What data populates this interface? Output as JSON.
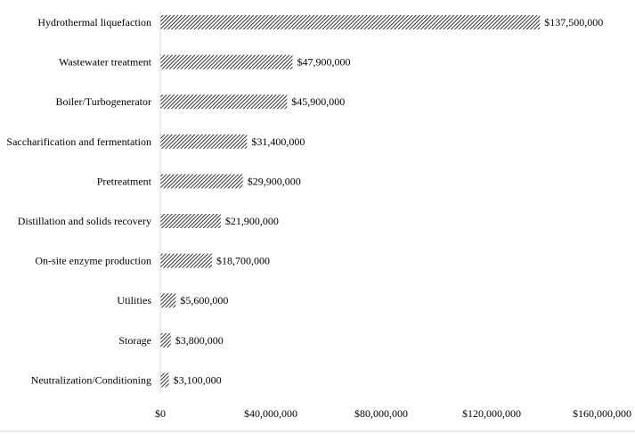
{
  "chart_data": {
    "type": "bar",
    "orientation": "horizontal",
    "title": "",
    "xlabel": "",
    "ylabel": "",
    "categories": [
      "Hydrothermal liquefaction",
      "Wastewater treatment",
      "Boiler/Turbogenerator",
      "Saccharification and fermentation",
      "Pretreatment",
      "Distillation and solids recovery",
      "On-site enzyme production",
      "Utilities",
      "Storage",
      "Neutralization/Conditioning"
    ],
    "values": [
      137500000,
      47900000,
      45900000,
      31400000,
      29900000,
      21900000,
      18700000,
      5600000,
      3800000,
      3100000
    ],
    "value_labels": [
      "$137,500,000",
      "$47,900,000",
      "$45,900,000",
      "$31,400,000",
      "$29,900,000",
      "$21,900,000",
      "$18,700,000",
      "$5,600,000",
      "$3,800,000",
      "$3,100,000"
    ],
    "xlim": [
      0,
      160000000
    ],
    "xticks": [
      0,
      40000000,
      80000000,
      120000000,
      160000000
    ],
    "xtick_labels": [
      "$0",
      "$40,000,000",
      "$80,000,000",
      "$120,000,000",
      "$160,000,000"
    ],
    "grid": false,
    "legend": "none",
    "bar_fill": "diagonal-hatch",
    "colors": {
      "bar_hatch": "#000000",
      "bar_bg": "#ffffff",
      "axis": "#d9d9d9"
    }
  }
}
